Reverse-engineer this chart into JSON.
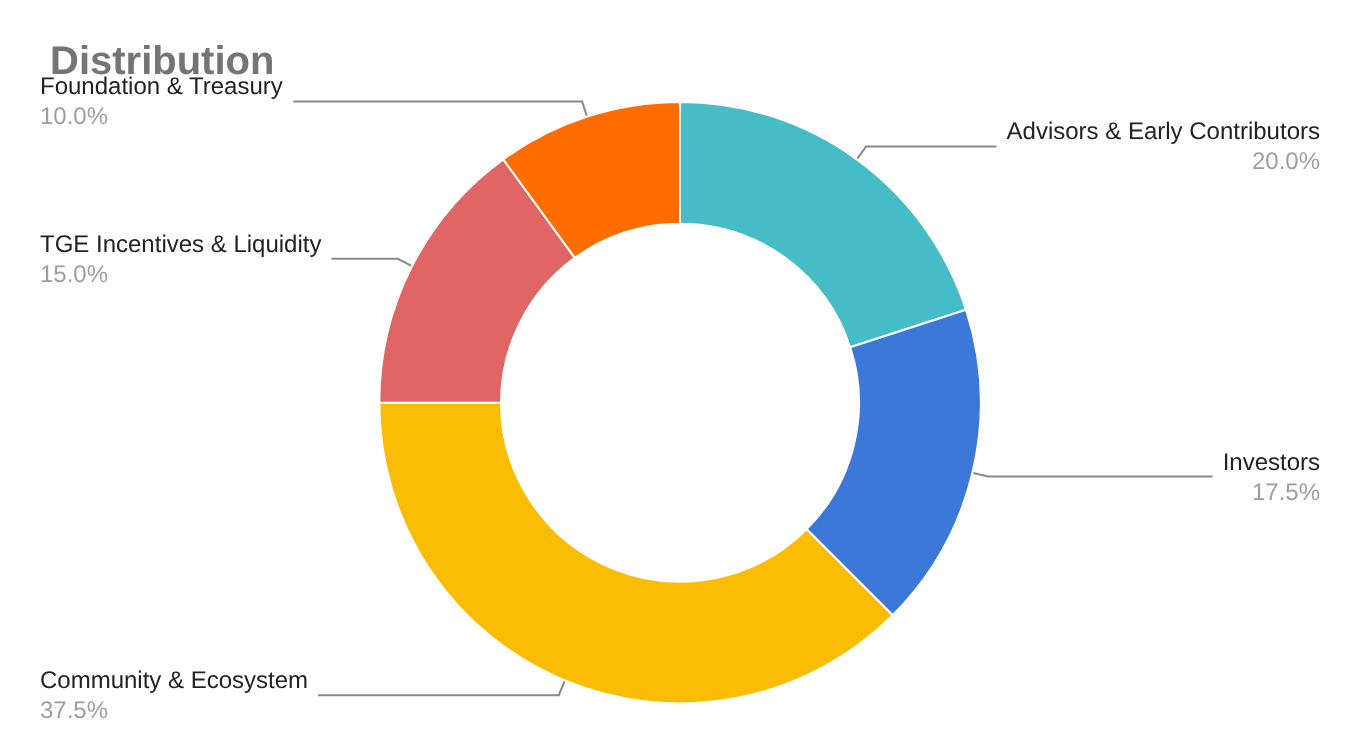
{
  "chart_data": {
    "type": "donut",
    "title": "Distribution",
    "categories": [
      "Advisors & Early Contributors",
      "Investors",
      "Community & Ecosystem",
      "TGE Incentives & Liquidity",
      "Foundation & Treasury"
    ],
    "values": [
      20.0,
      17.5,
      37.5,
      15.0,
      10.0
    ],
    "value_labels": [
      "20.0%",
      "17.5%",
      "37.5%",
      "15.0%",
      "10.0%"
    ],
    "colors": [
      "#46bdc6",
      "#3c78d8",
      "#fbbc04",
      "#e06666",
      "#ff6d01"
    ],
    "legend": false
  }
}
